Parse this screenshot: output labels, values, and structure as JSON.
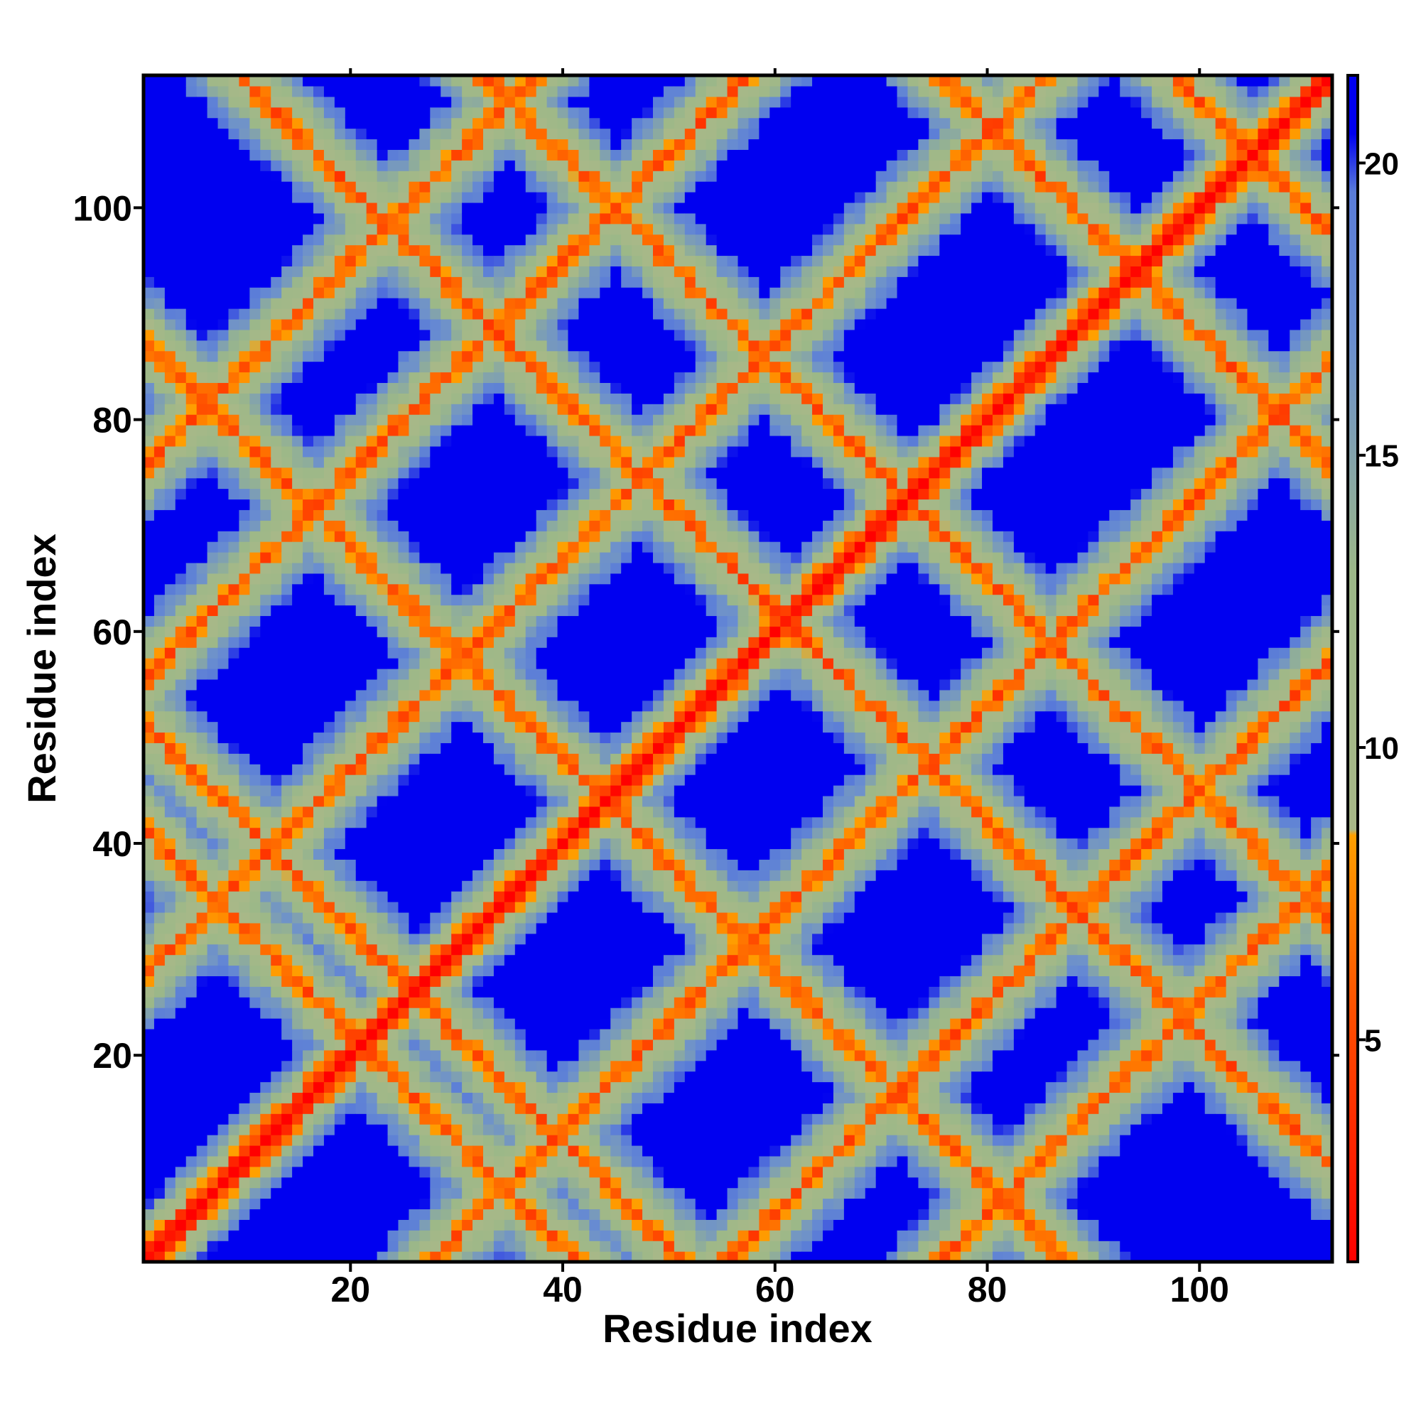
{
  "chart_data": {
    "type": "heatmap",
    "title": "",
    "xlabel": "Residue index",
    "ylabel": "Residue index",
    "n": 112,
    "xlim": [
      0.5,
      112.5
    ],
    "ylim": [
      0.5,
      112.5
    ],
    "x_ticks": [
      20,
      40,
      60,
      80,
      100
    ],
    "y_ticks": [
      20,
      40,
      60,
      80,
      100
    ],
    "x_tick_labels": [
      "20",
      "40",
      "60",
      "80",
      "100"
    ],
    "y_tick_labels": [
      "20",
      "40",
      "60",
      "80",
      "100"
    ],
    "colorbar": {
      "range": [
        1.2,
        21.5
      ],
      "ticks": [
        5,
        10,
        15,
        20
      ],
      "tick_labels": [
        "5",
        "10",
        "15",
        "20"
      ],
      "stops": [
        {
          "value": 1.2,
          "color": "#ff0000"
        },
        {
          "value": 5.5,
          "color": "#ff5000"
        },
        {
          "value": 8.5,
          "color": "#ffa000"
        },
        {
          "value": 8.6,
          "color": "#a8b888"
        },
        {
          "value": 13.0,
          "color": "#9cb888"
        },
        {
          "value": 17.0,
          "color": "#6a8ed0"
        },
        {
          "value": 19.5,
          "color": "#5a7cd8"
        },
        {
          "value": 20.5,
          "color": "#0000f0"
        },
        {
          "value": 21.5,
          "color": "#0000f0"
        }
      ]
    },
    "contact_bands": [
      {
        "type": "antidiagonal",
        "sum": 42
      },
      {
        "type": "antidiagonal",
        "sum": 52
      },
      {
        "type": "antidiagonal",
        "sum": 88
      },
      {
        "type": "antidiagonal",
        "sum": 122
      },
      {
        "type": "antidiagonal",
        "sum": 145
      },
      {
        "type": "antidiagonal",
        "sum": 188
      },
      {
        "type": "antidiagonal",
        "sum": 210
      },
      {
        "type": "diagonal",
        "offset": 27
      },
      {
        "type": "diagonal",
        "offset": 55
      },
      {
        "type": "diagonal",
        "offset": 75
      }
    ]
  }
}
